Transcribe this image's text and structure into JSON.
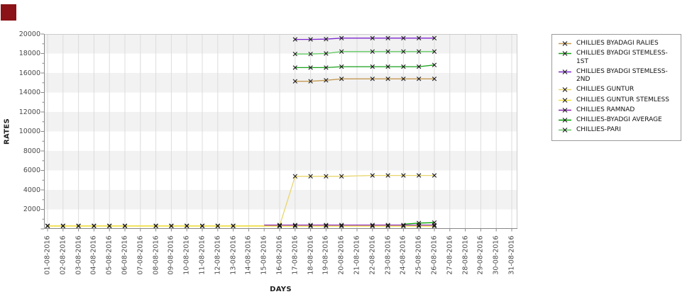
{
  "corner_mark": {
    "color": "#8b1216"
  },
  "chart_data": {
    "type": "line",
    "title": "",
    "xlabel": "DAYS",
    "ylabel": "RATES",
    "ylim": [
      0,
      20000
    ],
    "y_ticks": [
      2000,
      4000,
      6000,
      8000,
      10000,
      12000,
      14000,
      16000,
      18000,
      20000
    ],
    "x_categories": [
      "01-08-2016",
      "02-08-2016",
      "03-08-2016",
      "04-08-2016",
      "05-08-2016",
      "06-08-2016",
      "07-08-2016",
      "08-08-2016",
      "09-08-2016",
      "10-08-2016",
      "11-08-2016",
      "12-08-2016",
      "13-08-2016",
      "14-08-2016",
      "15-08-2016",
      "16-08-2016",
      "17-08-2016",
      "18-08-2016",
      "19-08-2016",
      "20-08-2016",
      "21-08-2016",
      "22-08-2016",
      "23-08-2016",
      "24-08-2016",
      "25-08-2016",
      "26-08-2016",
      "27-08-2016",
      "28-08-2016",
      "29-08-2016",
      "30-08-2016",
      "31-08-2016"
    ],
    "grid": {
      "vertical_line_color": "#dcdcdc",
      "band_colors": [
        "#f2f2f2",
        "#ffffff"
      ]
    },
    "axis_color": "#888888",
    "marker": {
      "shape": "x",
      "color": "#1a1a1a"
    },
    "legend_position": "right",
    "series": [
      {
        "name": "CHILLIES BYADAGI RALIES",
        "color": "#c59a53",
        "points": [
          [
            17,
            15150
          ],
          [
            18,
            15150
          ],
          [
            19,
            15250
          ],
          [
            20,
            15400
          ],
          [
            22,
            15400
          ],
          [
            23,
            15400
          ],
          [
            24,
            15400
          ],
          [
            25,
            15400
          ],
          [
            26,
            15400
          ]
        ]
      },
      {
        "name": "CHILLIES BYADGI STEMLESS-1ST",
        "color": "#1aa11a",
        "points": [
          [
            17,
            16550
          ],
          [
            18,
            16550
          ],
          [
            19,
            16550
          ],
          [
            20,
            16650
          ],
          [
            22,
            16650
          ],
          [
            23,
            16650
          ],
          [
            24,
            16650
          ],
          [
            25,
            16650
          ],
          [
            26,
            16820
          ]
        ]
      },
      {
        "name": "CHILLIES BYADGI STEMLESS-2ND",
        "color": "#7d26cd",
        "points": [
          [
            17,
            19450
          ],
          [
            18,
            19450
          ],
          [
            19,
            19480
          ],
          [
            20,
            19580
          ],
          [
            22,
            19580
          ],
          [
            23,
            19580
          ],
          [
            24,
            19580
          ],
          [
            25,
            19580
          ],
          [
            26,
            19580
          ]
        ]
      },
      {
        "name": "CHILLIES GUNTUR",
        "color": "#e9d66b",
        "points": [
          [
            1,
            320
          ],
          [
            2,
            320
          ],
          [
            3,
            320
          ],
          [
            4,
            320
          ],
          [
            5,
            320
          ],
          [
            6,
            320
          ],
          [
            8,
            320
          ],
          [
            9,
            320
          ],
          [
            10,
            320
          ],
          [
            11,
            320
          ],
          [
            12,
            320
          ],
          [
            13,
            320
          ],
          [
            16,
            330
          ],
          [
            17,
            5400
          ],
          [
            18,
            5400
          ],
          [
            19,
            5400
          ],
          [
            20,
            5400
          ],
          [
            22,
            5480
          ],
          [
            23,
            5480
          ],
          [
            24,
            5480
          ],
          [
            25,
            5480
          ],
          [
            26,
            5480
          ]
        ]
      },
      {
        "name": "CHILLIES GUNTUR STEMLESS",
        "color": "#f2e23a",
        "points": [
          [
            1,
            280
          ],
          [
            2,
            280
          ],
          [
            3,
            280
          ],
          [
            4,
            280
          ],
          [
            5,
            280
          ],
          [
            6,
            280
          ],
          [
            8,
            280
          ],
          [
            9,
            280
          ],
          [
            10,
            280
          ],
          [
            11,
            280
          ],
          [
            12,
            280
          ],
          [
            13,
            280
          ],
          [
            16,
            280
          ],
          [
            17,
            280
          ],
          [
            18,
            280
          ],
          [
            19,
            280
          ],
          [
            20,
            280
          ],
          [
            22,
            280
          ],
          [
            23,
            280
          ],
          [
            24,
            280
          ],
          [
            25,
            280
          ],
          [
            26,
            280
          ]
        ]
      },
      {
        "name": "CHILLIES RAMNAD",
        "color": "#8a24ad",
        "points": [
          [
            15,
            390
          ],
          [
            16,
            390
          ],
          [
            17,
            390
          ],
          [
            18,
            390
          ],
          [
            19,
            390
          ],
          [
            20,
            390
          ],
          [
            22,
            390
          ],
          [
            23,
            390
          ],
          [
            24,
            390
          ],
          [
            25,
            390
          ],
          [
            26,
            390
          ]
        ],
        "no_marker_days": [
          15
        ]
      },
      {
        "name": "CHILLIES-BYADGI AVERAGE",
        "color": "#00a000",
        "points": [
          [
            24,
            480
          ],
          [
            25,
            600
          ],
          [
            26,
            640
          ]
        ],
        "no_marker_days": [
          24
        ]
      },
      {
        "name": "CHILLIES-PARI",
        "color": "#62c962",
        "points": [
          [
            17,
            17950
          ],
          [
            18,
            17950
          ],
          [
            19,
            18000
          ],
          [
            20,
            18200
          ],
          [
            22,
            18200
          ],
          [
            23,
            18200
          ],
          [
            24,
            18200
          ],
          [
            25,
            18200
          ],
          [
            26,
            18200
          ]
        ]
      }
    ]
  }
}
